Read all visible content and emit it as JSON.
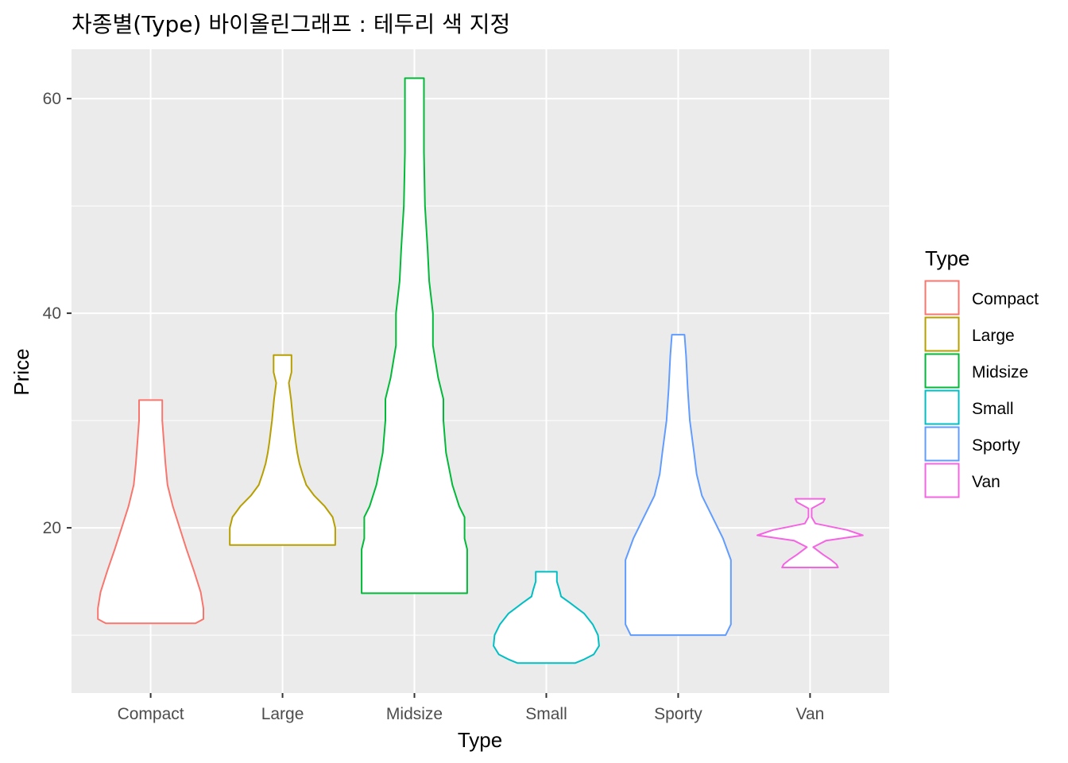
{
  "chart_data": {
    "type": "violin",
    "title": "차종별(Type) 바이올린그래프 : 테두리 색 지정",
    "xlabel": "Type",
    "ylabel": "Price",
    "ylim": [
      4.6,
      64.6
    ],
    "y_ticks": [
      20,
      40,
      60
    ],
    "y_minor_ticks": [
      10,
      30,
      50
    ],
    "grid": true,
    "legend": {
      "title": "Type",
      "position": "right"
    },
    "categories": [
      "Compact",
      "Large",
      "Midsize",
      "Small",
      "Sporty",
      "Van"
    ],
    "series": [
      {
        "name": "Compact",
        "color": "#F8766D",
        "profile": [
          [
            11.1,
            0.85
          ],
          [
            11.5,
            1.0
          ],
          [
            12.5,
            1.0
          ],
          [
            14,
            0.95
          ],
          [
            16,
            0.82
          ],
          [
            18,
            0.68
          ],
          [
            20,
            0.55
          ],
          [
            22,
            0.42
          ],
          [
            24,
            0.32
          ],
          [
            26,
            0.28
          ],
          [
            28,
            0.25
          ],
          [
            30,
            0.22
          ],
          [
            31.9,
            0.22
          ]
        ]
      },
      {
        "name": "Large",
        "color": "#B79F00",
        "profile": [
          [
            18.4,
            1.0
          ],
          [
            19,
            1.0
          ],
          [
            20,
            1.0
          ],
          [
            21,
            0.95
          ],
          [
            22,
            0.8
          ],
          [
            23,
            0.6
          ],
          [
            24,
            0.45
          ],
          [
            25,
            0.38
          ],
          [
            26,
            0.32
          ],
          [
            27,
            0.28
          ],
          [
            28,
            0.25
          ],
          [
            30,
            0.2
          ],
          [
            32,
            0.16
          ],
          [
            33.5,
            0.12
          ],
          [
            34.5,
            0.17
          ],
          [
            36.1,
            0.17
          ]
        ]
      },
      {
        "name": "Midsize",
        "color": "#00BA38",
        "profile": [
          [
            13.9,
            1.0
          ],
          [
            16,
            1.0
          ],
          [
            18,
            1.0
          ],
          [
            19,
            0.95
          ],
          [
            21,
            0.95
          ],
          [
            22,
            0.85
          ],
          [
            24,
            0.72
          ],
          [
            27,
            0.6
          ],
          [
            30,
            0.55
          ],
          [
            32,
            0.55
          ],
          [
            34,
            0.45
          ],
          [
            37,
            0.35
          ],
          [
            40,
            0.35
          ],
          [
            43,
            0.28
          ],
          [
            46,
            0.25
          ],
          [
            50,
            0.2
          ],
          [
            55,
            0.18
          ],
          [
            58,
            0.18
          ],
          [
            61.9,
            0.18
          ]
        ]
      },
      {
        "name": "Small",
        "color": "#00BFC4",
        "profile": [
          [
            7.4,
            0.55
          ],
          [
            7.7,
            0.7
          ],
          [
            8.2,
            0.9
          ],
          [
            9,
            1.0
          ],
          [
            10,
            0.98
          ],
          [
            11,
            0.88
          ],
          [
            12,
            0.72
          ],
          [
            13,
            0.45
          ],
          [
            13.6,
            0.28
          ],
          [
            14.2,
            0.25
          ],
          [
            15,
            0.2
          ],
          [
            15.9,
            0.2
          ]
        ]
      },
      {
        "name": "Sporty",
        "color": "#619CFF",
        "profile": [
          [
            10,
            0.9
          ],
          [
            11,
            1.0
          ],
          [
            13,
            1.0
          ],
          [
            15,
            1.0
          ],
          [
            17,
            1.0
          ],
          [
            19,
            0.85
          ],
          [
            21,
            0.65
          ],
          [
            23,
            0.45
          ],
          [
            25,
            0.35
          ],
          [
            27,
            0.3
          ],
          [
            30,
            0.22
          ],
          [
            33,
            0.18
          ],
          [
            36,
            0.15
          ],
          [
            38,
            0.12
          ]
        ]
      },
      {
        "name": "Van",
        "color": "#F564E3",
        "profile": [
          [
            16.3,
            0.53
          ],
          [
            16.6,
            0.5
          ],
          [
            17,
            0.4
          ],
          [
            17.5,
            0.25
          ],
          [
            18.2,
            0.06
          ],
          [
            18.8,
            0.3
          ],
          [
            19.3,
            1.0
          ],
          [
            19.8,
            0.7
          ],
          [
            20.4,
            0.1
          ],
          [
            21,
            0.03
          ],
          [
            21.8,
            0.03
          ],
          [
            22.4,
            0.25
          ],
          [
            22.7,
            0.28
          ]
        ]
      }
    ]
  }
}
